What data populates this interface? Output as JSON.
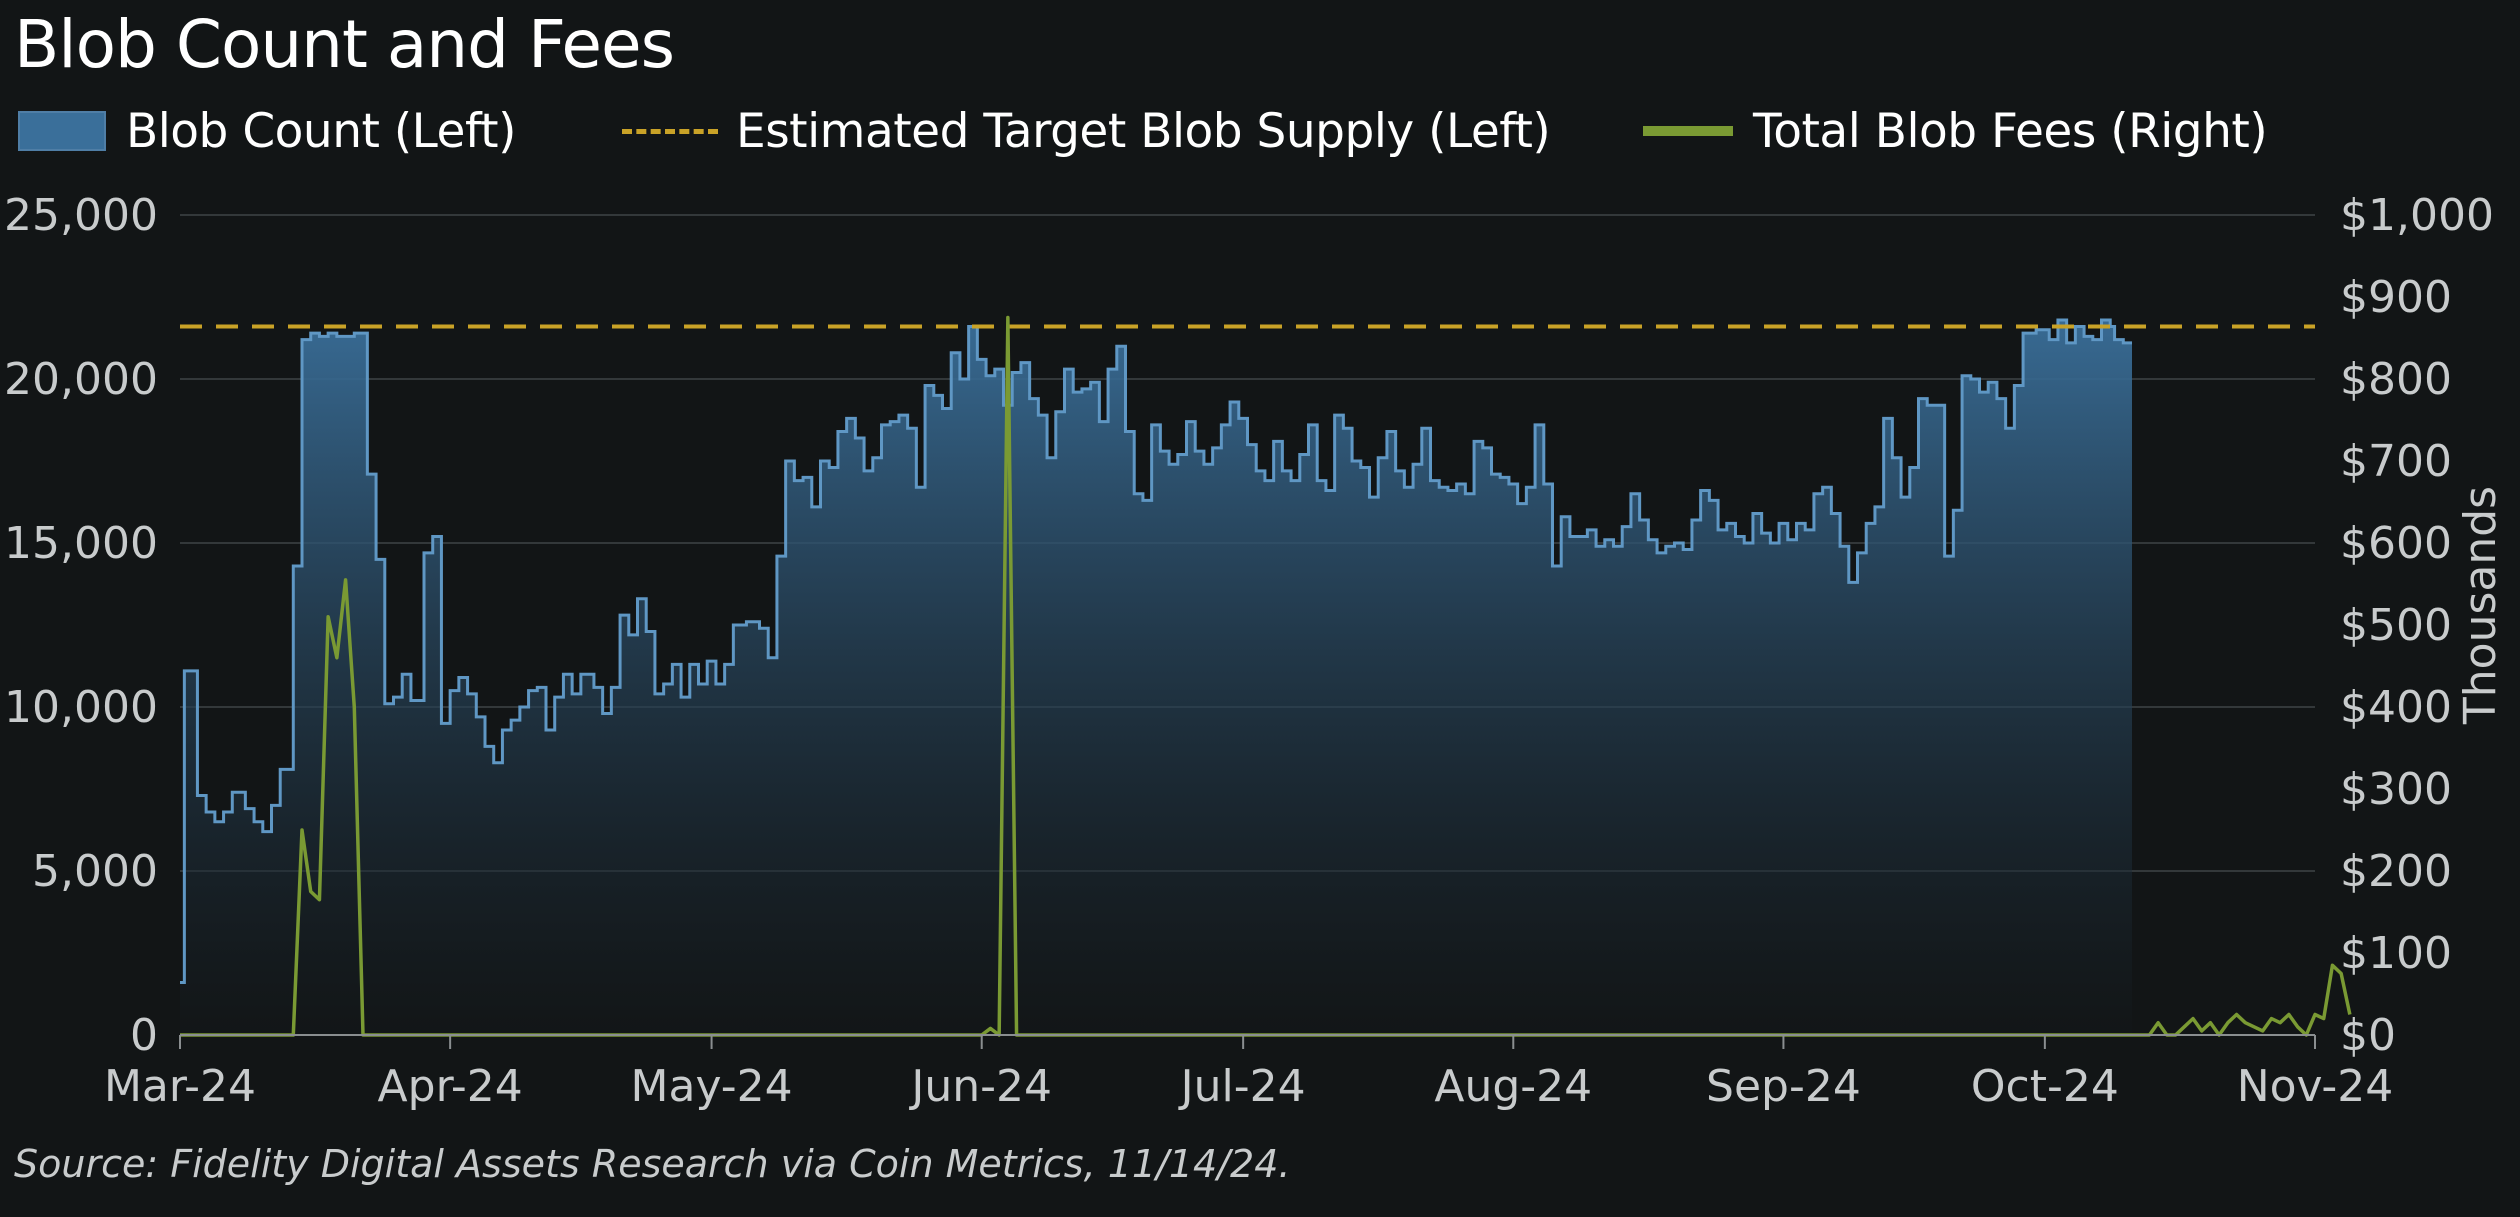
{
  "chart_data": {
    "type": "area",
    "title": "Blob Count and Fees",
    "source": "Source: Fidelity Digital Assets Research via Coin Metrics, 11/14/24.",
    "colors": {
      "blob_fill_top": "#3a6f9a",
      "blob_fill_bottom": "#131719",
      "blob_line": "#5f97c4",
      "target_line": "#c9a227",
      "fees_line": "#7a9a33",
      "grid": "#33383a",
      "text": "#ffffff",
      "tick_text": "#c8cbcc"
    },
    "legend": [
      {
        "label": "Blob Count (Left)",
        "swatch": "box"
      },
      {
        "label": "Estimated Target Blob Supply (Left)",
        "swatch": "dash"
      },
      {
        "label": "Total Blob Fees (Right)",
        "swatch": "line"
      }
    ],
    "x_axis": {
      "ticks": [
        {
          "label": "Mar-24",
          "day": 0
        },
        {
          "label": "Apr-24",
          "day": 31
        },
        {
          "label": "May-24",
          "day": 61
        },
        {
          "label": "Jun-24",
          "day": 92
        },
        {
          "label": "Jul-24",
          "day": 122
        },
        {
          "label": "Aug-24",
          "day": 153
        },
        {
          "label": "Sep-24",
          "day": 184
        },
        {
          "label": "Oct-24",
          "day": 214
        },
        {
          "label": "Nov-24",
          "day": 245
        }
      ],
      "range": [
        0,
        245
      ]
    },
    "left_axis": {
      "ylim": [
        0,
        25000
      ],
      "ticks": [
        {
          "label": "0",
          "value": 0
        },
        {
          "label": "5,000",
          "value": 5000
        },
        {
          "label": "10,000",
          "value": 10000
        },
        {
          "label": "15,000",
          "value": 15000
        },
        {
          "label": "20,000",
          "value": 20000
        },
        {
          "label": "25,000",
          "value": 25000
        }
      ]
    },
    "right_axis": {
      "ylim": [
        0,
        1000
      ],
      "label": "Thousands",
      "ticks": [
        {
          "label": "$0",
          "value": 0
        },
        {
          "label": "$100",
          "value": 100
        },
        {
          "label": "$200",
          "value": 200
        },
        {
          "label": "$300",
          "value": 300
        },
        {
          "label": "$400",
          "value": 400
        },
        {
          "label": "$500",
          "value": 500
        },
        {
          "label": "$600",
          "value": 600
        },
        {
          "label": "$700",
          "value": 700
        },
        {
          "label": "$800",
          "value": 800
        },
        {
          "label": "$900",
          "value": 900
        },
        {
          "label": "$1,000",
          "value": 1000
        }
      ]
    },
    "target_blob_supply": 21600,
    "series": [
      {
        "name": "Blob Count (Left)",
        "axis": "left",
        "points": [
          [
            0,
            1600
          ],
          [
            0.5,
            11100
          ],
          [
            2,
            7300
          ],
          [
            3,
            6800
          ],
          [
            4,
            6500
          ],
          [
            5,
            6800
          ],
          [
            6,
            7400
          ],
          [
            7.5,
            6900
          ],
          [
            8.5,
            6500
          ],
          [
            9.5,
            6200
          ],
          [
            10.5,
            7000
          ],
          [
            11.5,
            8100
          ],
          [
            13,
            14300
          ],
          [
            14,
            21200
          ],
          [
            15,
            21400
          ],
          [
            16,
            21300
          ],
          [
            17,
            21400
          ],
          [
            18,
            21300
          ],
          [
            19,
            21300
          ],
          [
            20,
            21400
          ],
          [
            21.5,
            17100
          ],
          [
            22.5,
            14500
          ],
          [
            23.5,
            10100
          ],
          [
            24.5,
            10300
          ],
          [
            25.5,
            11000
          ],
          [
            26.5,
            10200
          ],
          [
            28,
            14700
          ],
          [
            29,
            15200
          ],
          [
            30,
            9500
          ],
          [
            31,
            10500
          ],
          [
            32,
            10900
          ],
          [
            33,
            10400
          ],
          [
            34,
            9700
          ],
          [
            35,
            8800
          ],
          [
            36,
            8300
          ],
          [
            37,
            9300
          ],
          [
            38,
            9600
          ],
          [
            39,
            10000
          ],
          [
            40,
            10500
          ],
          [
            41,
            10600
          ],
          [
            42,
            9300
          ],
          [
            43,
            10300
          ],
          [
            44,
            11000
          ],
          [
            45,
            10400
          ],
          [
            46,
            11000
          ],
          [
            47.5,
            10600
          ],
          [
            48.5,
            9800
          ],
          [
            49.5,
            10600
          ],
          [
            50.5,
            12800
          ],
          [
            51.5,
            12200
          ],
          [
            52.5,
            13300
          ],
          [
            53.5,
            12300
          ],
          [
            54.5,
            10400
          ],
          [
            55.5,
            10700
          ],
          [
            56.5,
            11300
          ],
          [
            57.5,
            10300
          ],
          [
            58.5,
            11300
          ],
          [
            59.5,
            10700
          ],
          [
            60.5,
            11400
          ],
          [
            61.5,
            10700
          ],
          [
            62.5,
            11300
          ],
          [
            63.5,
            12500
          ],
          [
            65,
            12600
          ],
          [
            66.5,
            12400
          ],
          [
            67.5,
            11500
          ],
          [
            68.5,
            14600
          ],
          [
            69.5,
            17500
          ],
          [
            70.5,
            16900
          ],
          [
            71.5,
            17000
          ],
          [
            72.5,
            16100
          ],
          [
            73.5,
            17500
          ],
          [
            74.5,
            17300
          ],
          [
            75.5,
            18400
          ],
          [
            76.5,
            18800
          ],
          [
            77.5,
            18200
          ],
          [
            78.5,
            17200
          ],
          [
            79.5,
            17600
          ],
          [
            80.5,
            18600
          ],
          [
            81.5,
            18700
          ],
          [
            82.5,
            18900
          ],
          [
            83.5,
            18500
          ],
          [
            84.5,
            16700
          ],
          [
            85.5,
            19800
          ],
          [
            86.5,
            19500
          ],
          [
            87.5,
            19100
          ],
          [
            88.5,
            20800
          ],
          [
            89.5,
            20000
          ],
          [
            90.5,
            21600
          ],
          [
            91.5,
            20600
          ],
          [
            92.5,
            20100
          ],
          [
            93.5,
            20300
          ],
          [
            94.5,
            19200
          ],
          [
            95.5,
            20200
          ],
          [
            96.5,
            20500
          ],
          [
            97.5,
            19400
          ],
          [
            98.5,
            18900
          ],
          [
            99.5,
            17600
          ],
          [
            100.5,
            19000
          ],
          [
            101.5,
            20300
          ],
          [
            102.5,
            19600
          ],
          [
            103.5,
            19700
          ],
          [
            104.5,
            19900
          ],
          [
            105.5,
            18700
          ],
          [
            106.5,
            20300
          ],
          [
            107.5,
            21000
          ],
          [
            108.5,
            18400
          ],
          [
            109.5,
            16500
          ],
          [
            110.5,
            16300
          ],
          [
            111.5,
            18600
          ],
          [
            112.5,
            17800
          ],
          [
            113.5,
            17400
          ],
          [
            114.5,
            17700
          ],
          [
            115.5,
            18700
          ],
          [
            116.5,
            17800
          ],
          [
            117.5,
            17400
          ],
          [
            118.5,
            17900
          ],
          [
            119.5,
            18600
          ],
          [
            120.5,
            19300
          ],
          [
            121.5,
            18800
          ],
          [
            122.5,
            18000
          ],
          [
            123.5,
            17200
          ],
          [
            124.5,
            16900
          ],
          [
            125.5,
            18100
          ],
          [
            126.5,
            17200
          ],
          [
            127.5,
            16900
          ],
          [
            128.5,
            17700
          ],
          [
            129.5,
            18600
          ],
          [
            130.5,
            16900
          ],
          [
            131.5,
            16600
          ],
          [
            132.5,
            18900
          ],
          [
            133.5,
            18500
          ],
          [
            134.5,
            17500
          ],
          [
            135.5,
            17300
          ],
          [
            136.5,
            16400
          ],
          [
            137.5,
            17600
          ],
          [
            138.5,
            18400
          ],
          [
            139.5,
            17200
          ],
          [
            140.5,
            16700
          ],
          [
            141.5,
            17400
          ],
          [
            142.5,
            18500
          ],
          [
            143.5,
            16900
          ],
          [
            144.5,
            16700
          ],
          [
            145.5,
            16600
          ],
          [
            146.5,
            16800
          ],
          [
            147.5,
            16500
          ],
          [
            148.5,
            18100
          ],
          [
            149.5,
            17900
          ],
          [
            150.5,
            17100
          ],
          [
            151.5,
            17000
          ],
          [
            152.5,
            16800
          ],
          [
            153.5,
            16200
          ],
          [
            154.5,
            16700
          ],
          [
            155.5,
            18600
          ],
          [
            156.5,
            16800
          ],
          [
            157.5,
            14300
          ],
          [
            158.5,
            15800
          ],
          [
            159.5,
            15200
          ],
          [
            160.5,
            15200
          ],
          [
            161.5,
            15400
          ],
          [
            162.5,
            14900
          ],
          [
            163.5,
            15100
          ],
          [
            164.5,
            14900
          ],
          [
            165.5,
            15500
          ],
          [
            166.5,
            16500
          ],
          [
            167.5,
            15700
          ],
          [
            168.5,
            15100
          ],
          [
            169.5,
            14700
          ],
          [
            170.5,
            14900
          ],
          [
            171.5,
            15000
          ],
          [
            172.5,
            14800
          ],
          [
            173.5,
            15700
          ],
          [
            174.5,
            16600
          ],
          [
            175.5,
            16300
          ],
          [
            176.5,
            15400
          ],
          [
            177.5,
            15600
          ],
          [
            178.5,
            15200
          ],
          [
            179.5,
            15000
          ],
          [
            180.5,
            15900
          ],
          [
            181.5,
            15300
          ],
          [
            182.5,
            15000
          ],
          [
            183.5,
            15600
          ],
          [
            184.5,
            15100
          ],
          [
            185.5,
            15600
          ],
          [
            186.5,
            15400
          ],
          [
            187.5,
            16500
          ],
          [
            188.5,
            16700
          ],
          [
            189.5,
            15900
          ],
          [
            190.5,
            14900
          ],
          [
            191.5,
            13800
          ],
          [
            192.5,
            14700
          ],
          [
            193.5,
            15600
          ],
          [
            194.5,
            16100
          ],
          [
            195.5,
            18800
          ],
          [
            196.5,
            17600
          ],
          [
            197.5,
            16400
          ],
          [
            198.5,
            17300
          ],
          [
            199.5,
            19400
          ],
          [
            200.5,
            19200
          ],
          [
            201.5,
            19200
          ],
          [
            202.5,
            14600
          ],
          [
            203.5,
            16000
          ],
          [
            204.5,
            20100
          ],
          [
            205.5,
            20000
          ],
          [
            206.5,
            19600
          ],
          [
            207.5,
            19900
          ],
          [
            208.5,
            19400
          ],
          [
            209.5,
            18500
          ],
          [
            210.5,
            19800
          ],
          [
            211.5,
            21400
          ],
          [
            213,
            21500
          ],
          [
            214.5,
            21200
          ],
          [
            215.5,
            21800
          ],
          [
            216.5,
            21100
          ],
          [
            217.5,
            21600
          ],
          [
            218.5,
            21300
          ],
          [
            219.5,
            21200
          ],
          [
            220.5,
            21800
          ],
          [
            221.5,
            21600
          ],
          [
            222,
            21200
          ],
          [
            223,
            21100
          ],
          [
            224,
            21100
          ]
        ]
      },
      {
        "name": "Total Blob Fees (Right)",
        "axis": "right",
        "points": [
          [
            0,
            0
          ],
          [
            13,
            0
          ],
          [
            14,
            250
          ],
          [
            15,
            175
          ],
          [
            16,
            165
          ],
          [
            17,
            510
          ],
          [
            18,
            460
          ],
          [
            19,
            555
          ],
          [
            20,
            400
          ],
          [
            21,
            0
          ],
          [
            92,
            0
          ],
          [
            93,
            8
          ],
          [
            94,
            0
          ],
          [
            95,
            875
          ],
          [
            96,
            0
          ],
          [
            224,
            0
          ],
          [
            225,
            0
          ],
          [
            226,
            0
          ],
          [
            227,
            15
          ],
          [
            228,
            0
          ],
          [
            229,
            0
          ],
          [
            230,
            10
          ],
          [
            231,
            20
          ],
          [
            232,
            5
          ],
          [
            233,
            15
          ],
          [
            234,
            0
          ],
          [
            235,
            15
          ],
          [
            236,
            25
          ],
          [
            237,
            15
          ],
          [
            238,
            10
          ],
          [
            239,
            5
          ],
          [
            240,
            20
          ],
          [
            241,
            15
          ],
          [
            242,
            25
          ],
          [
            243,
            10
          ],
          [
            244,
            0
          ],
          [
            245,
            25
          ],
          [
            246,
            20
          ],
          [
            247,
            85
          ],
          [
            248,
            75
          ],
          [
            249,
            25
          ]
        ]
      }
    ]
  }
}
